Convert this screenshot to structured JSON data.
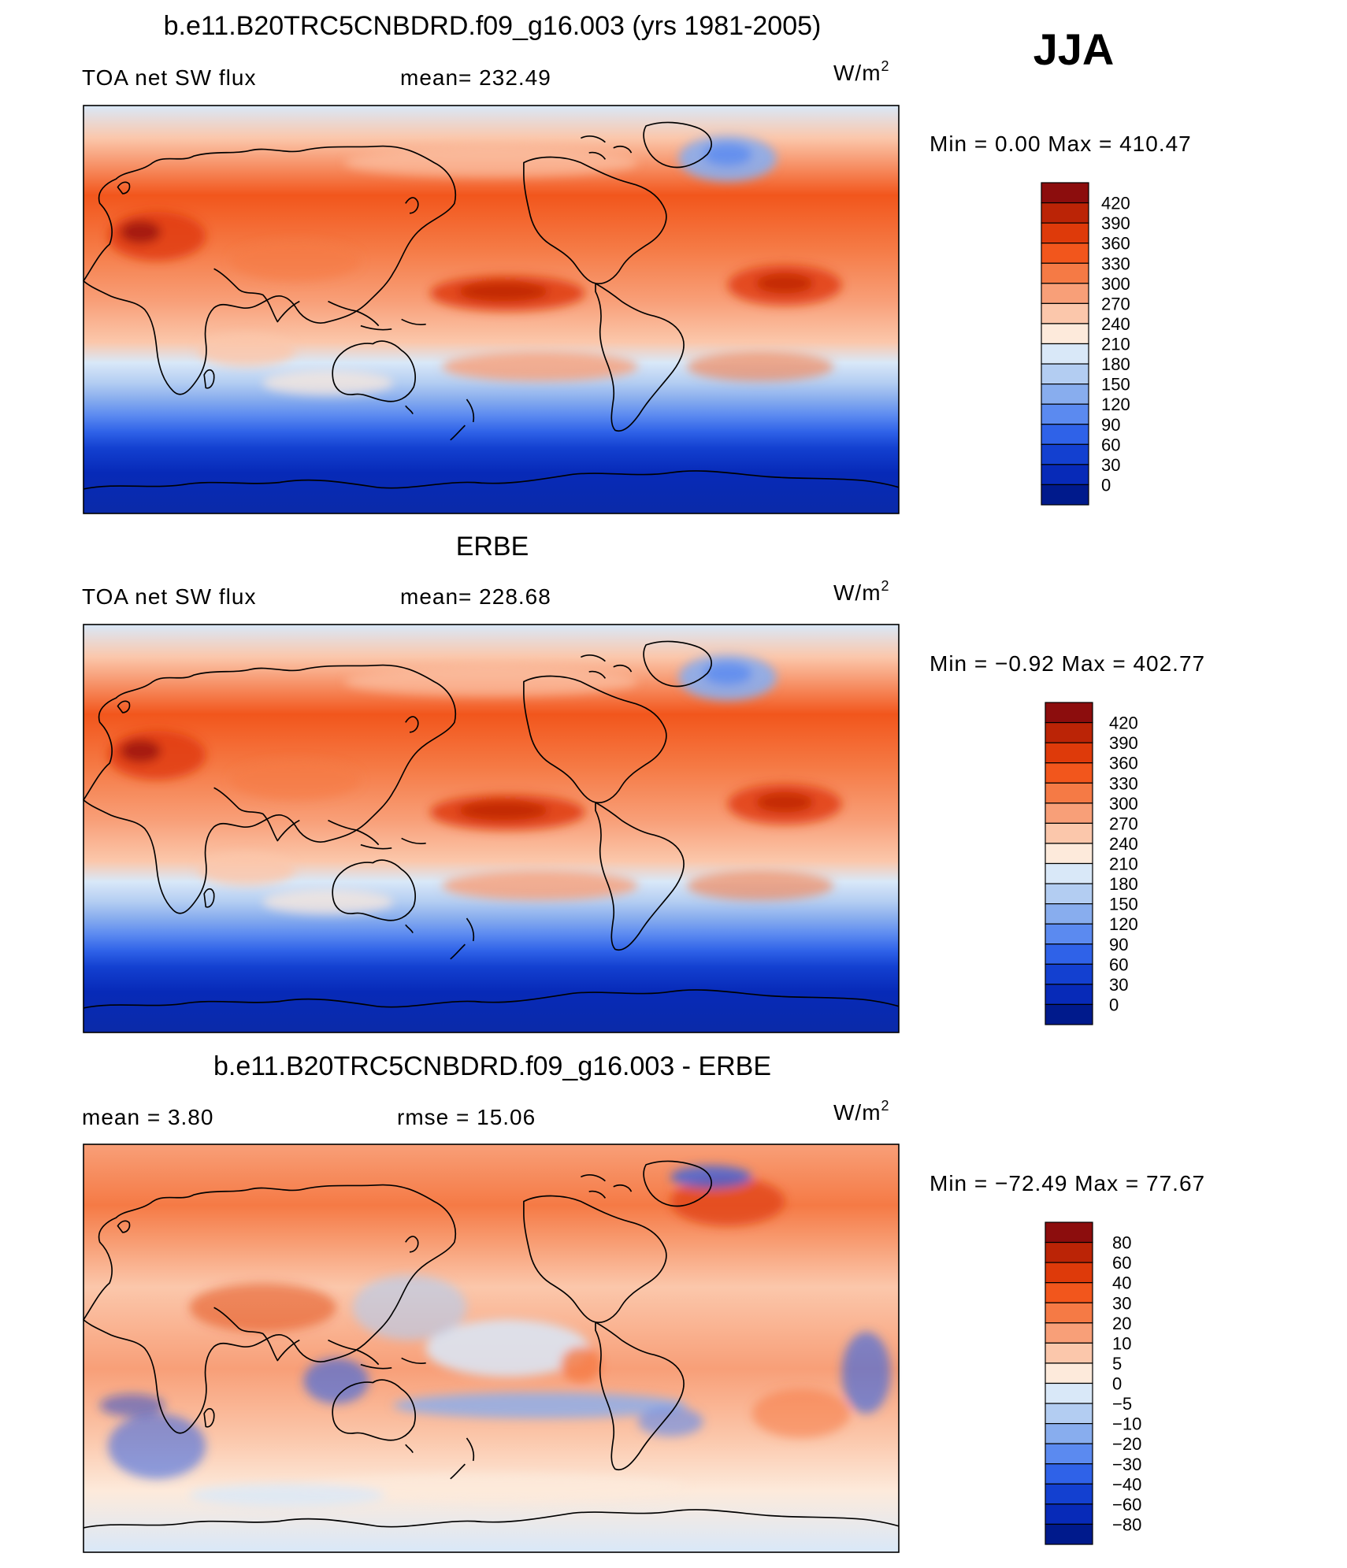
{
  "season": "JJA",
  "unit_base": "W/m",
  "unit_exp": "2",
  "panels": [
    {
      "title": "b.e11.B20TRC5CNBDRD.f09_g16.003 (yrs 1981-2005)",
      "left_label": "TOA net SW flux",
      "mid_label": "mean=  232.49",
      "minmax": "Min =     0.00  Max  =  410.47",
      "colorbar": [
        "420",
        "390",
        "360",
        "330",
        "300",
        "270",
        "240",
        "210",
        "180",
        "150",
        "120",
        "90",
        "60",
        "30",
        "0"
      ]
    },
    {
      "title": "ERBE",
      "left_label": "TOA net SW flux",
      "mid_label": "mean=  228.68",
      "minmax": "Min =   −0.92  Max  =  402.77",
      "colorbar": [
        "420",
        "390",
        "360",
        "330",
        "300",
        "270",
        "240",
        "210",
        "180",
        "150",
        "120",
        "90",
        "60",
        "30",
        "0"
      ]
    },
    {
      "title": "b.e11.B20TRC5CNBDRD.f09_g16.003 - ERBE",
      "left_label": "mean =     3.80",
      "mid_label": "rmse =    15.06",
      "minmax": "Min  =  −72.49  Max  =    77.67",
      "colorbar": [
        "80",
        "60",
        "40",
        "30",
        "20",
        "10",
        "5",
        "0",
        "−5",
        "−10",
        "−20",
        "−30",
        "−40",
        "−60",
        "−80"
      ]
    }
  ],
  "colors": {
    "flux": [
      "#8c0d0d",
      "#bb2406",
      "#de3a0a",
      "#f2561c",
      "#f57a45",
      "#f89f78",
      "#fbc7ab",
      "#fdeadb",
      "#d9e8f8",
      "#b3cdf2",
      "#88adee",
      "#5b8af0",
      "#2f62e8",
      "#1340d0",
      "#072ab8",
      "#001a8c"
    ],
    "diff": [
      "#8c0d0d",
      "#bb2406",
      "#de3a0a",
      "#f2561c",
      "#f57a45",
      "#f89f78",
      "#fbc7ab",
      "#fdeadb",
      "#d9e8f8",
      "#b3cdf2",
      "#88adee",
      "#5b8af0",
      "#2f62e8",
      "#1340d0",
      "#072ab8",
      "#001a8c"
    ]
  }
}
